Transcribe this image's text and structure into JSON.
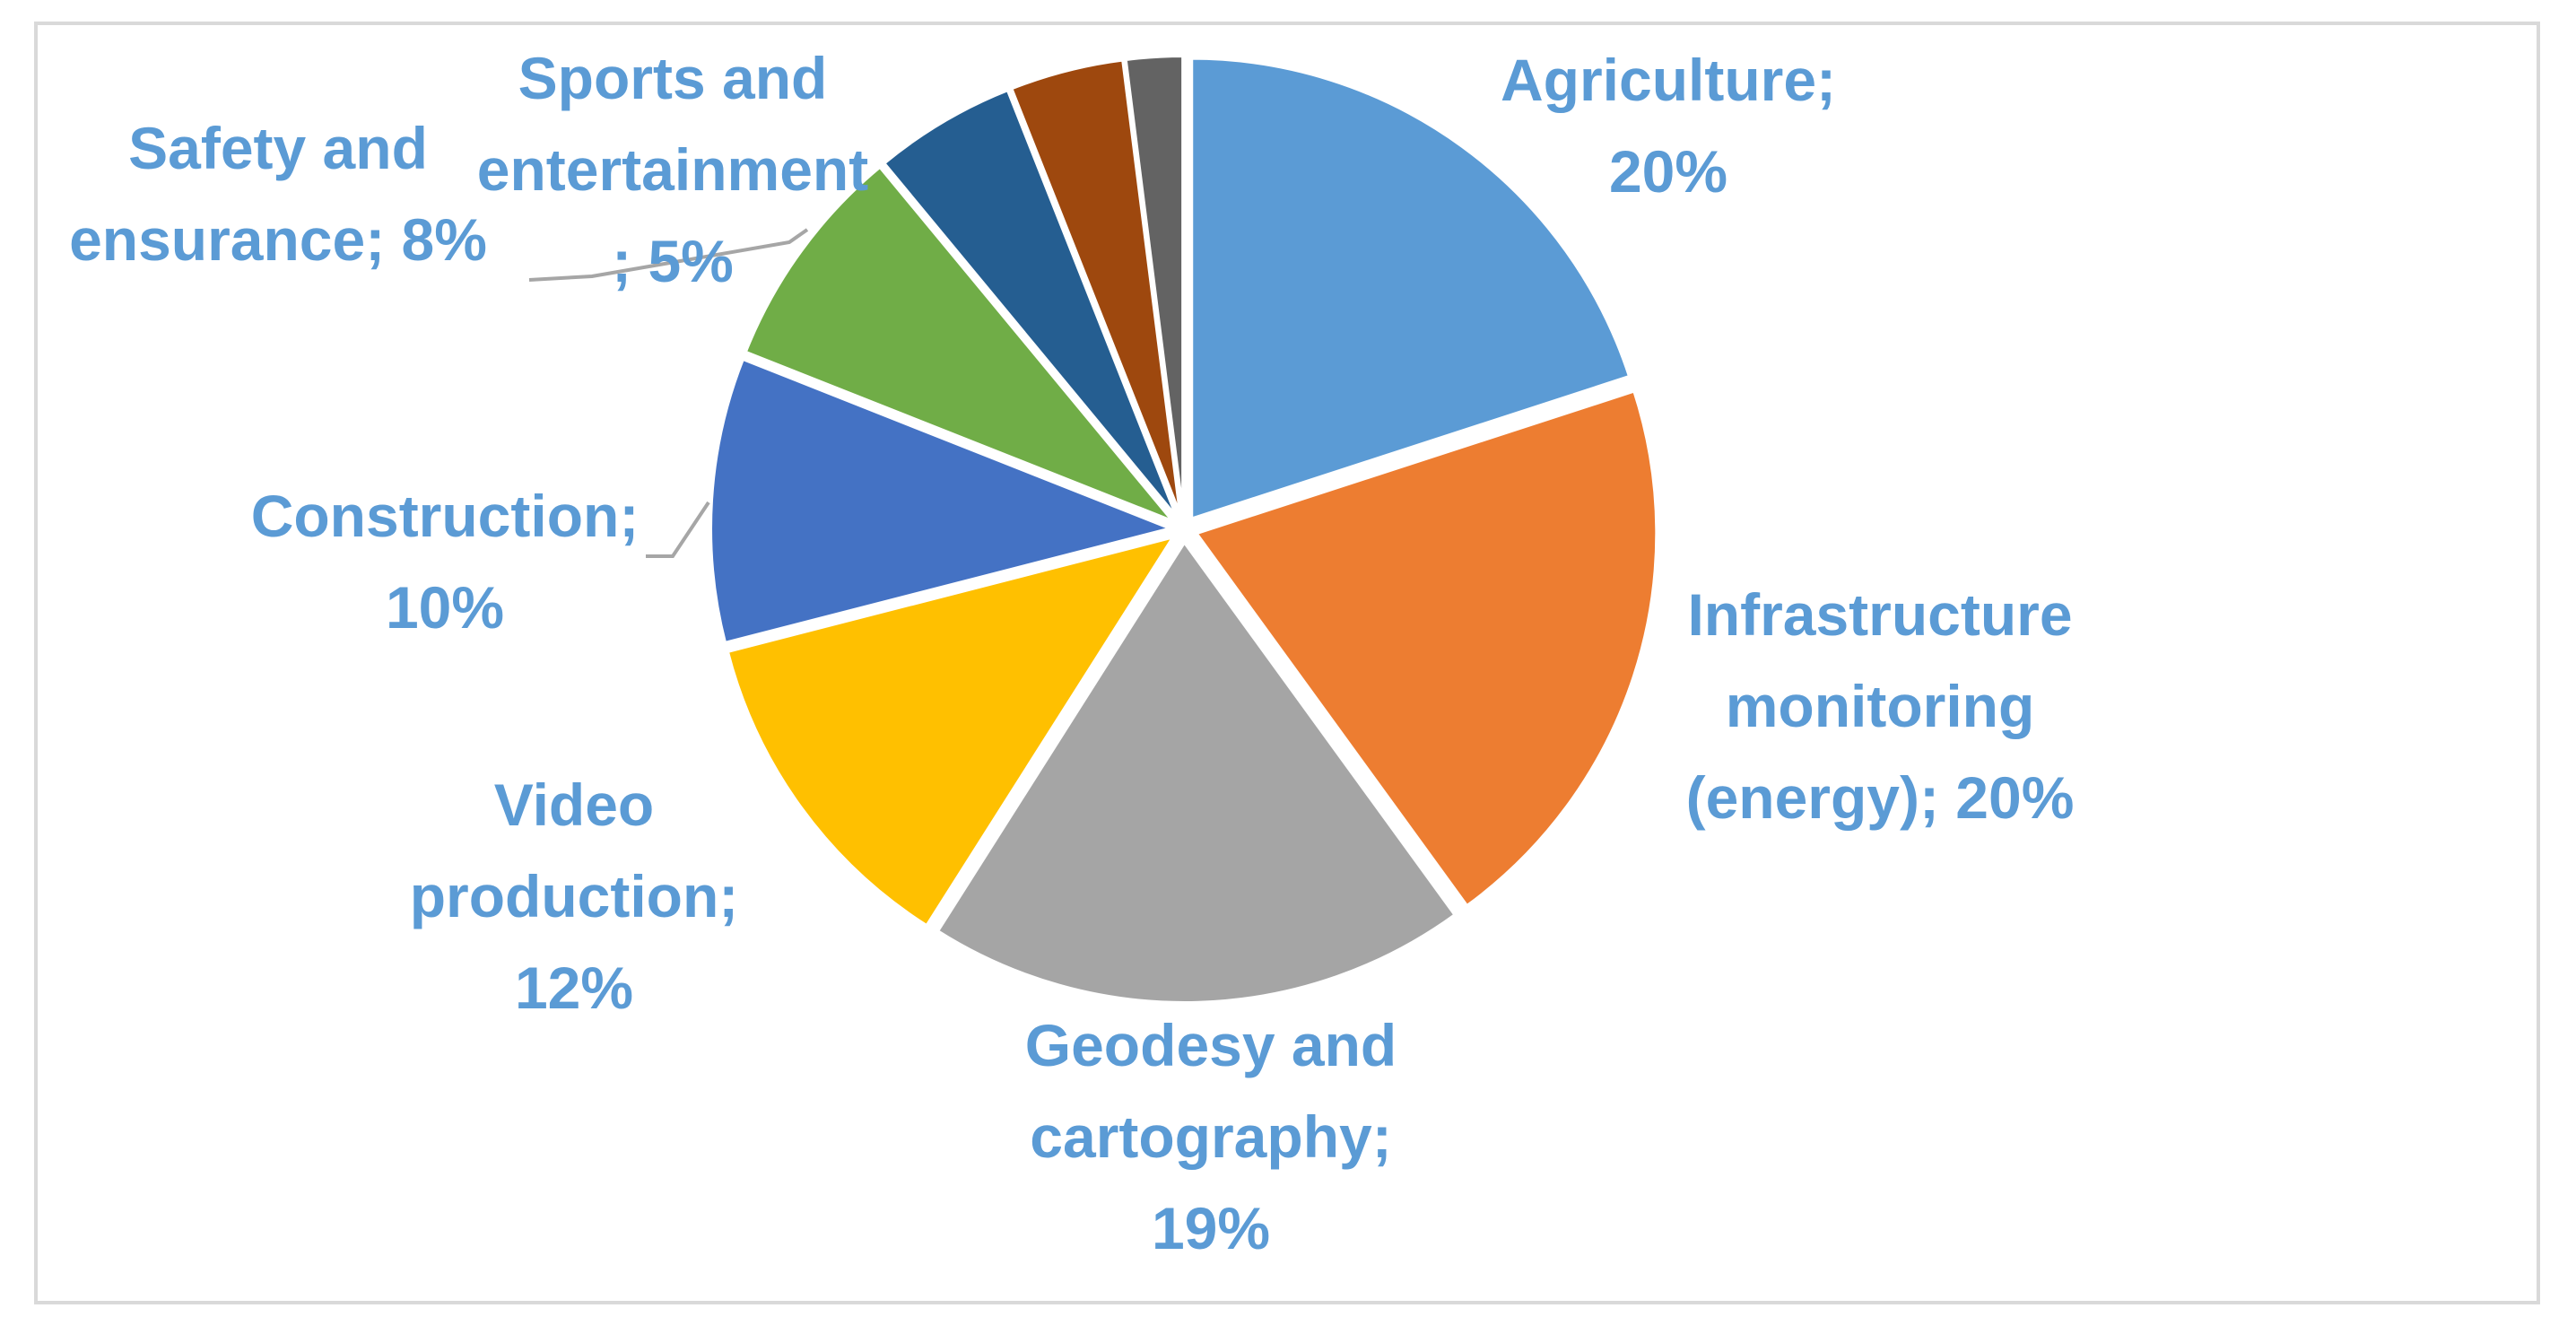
{
  "chart_data": {
    "type": "pie",
    "title": "",
    "slices": [
      {
        "label": "Agriculture",
        "value": 20,
        "label_text": "Agriculture; 20%",
        "color": "#5b9bd5"
      },
      {
        "label": "Infrastructure monitoring (energy)",
        "value": 20,
        "label_text": "Infrastructure monitoring (energy); 20%",
        "color": "#ed7d31"
      },
      {
        "label": "Geodesy and cartography",
        "value": 19,
        "label_text": "Geodesy and cartography; 19%",
        "color": "#a5a5a5"
      },
      {
        "label": "Video production",
        "value": 12,
        "label_text": "Video production; 12%",
        "color": "#ffc000"
      },
      {
        "label": "Construction",
        "value": 10,
        "label_text": "Construction; 10%",
        "color": "#4472c4"
      },
      {
        "label": "Safety and ensurance",
        "value": 8,
        "label_text": "Safety and ensurance; 8%",
        "color": "#70ad47"
      },
      {
        "label": "Sports and entertainment",
        "value": 5,
        "label_text": "Sports and entertainment ; 5%",
        "color": "#255e91"
      },
      {
        "label": "",
        "value": 4,
        "label_text": "",
        "color": "#9e480e"
      },
      {
        "label": "",
        "value": 2,
        "label_text": "",
        "color": "#636363"
      }
    ],
    "label_color": "#5b9bd5",
    "legend": "none"
  }
}
